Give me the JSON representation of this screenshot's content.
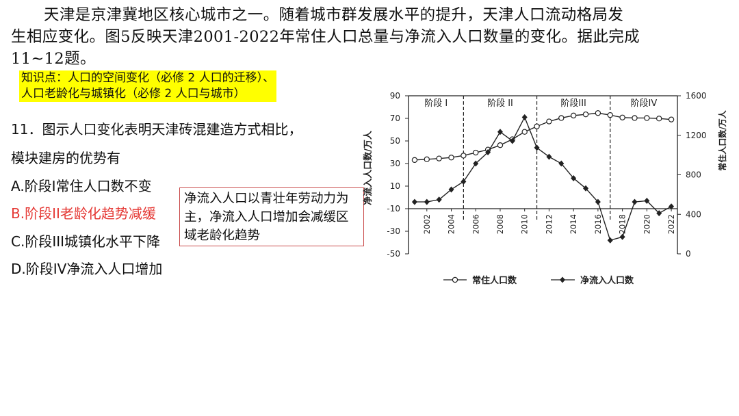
{
  "intro": {
    "line1": "天津是京津冀地区核心城市之一。随着城市群发展水平的提升，天津人口流动格局发",
    "line2": "生相应变化。图5反映天津2001-2022年常住人口总量与净流入人口数量的变化。据此完成",
    "line3": "11~12题。"
  },
  "knowledge": {
    "line1": "知识点：人口的空间变化（必修 2 人口的迁移）、",
    "line2": "人口老龄化与城镇化（必修 2 人口与城市）"
  },
  "question": {
    "stem1": "11．图示人口变化表明天津砖混建造方式相比，",
    "stem2": "模块建房的优势有",
    "options": [
      "A.阶段I常住人口数不变",
      "B.阶段II老龄化趋势减缓",
      "C.阶段III城镇化水平下降",
      "D.阶段IV净流入人口增加"
    ]
  },
  "note": "净流入人口以青壮年劳动力为主，净流入人口增加会减缓区域老龄化趋势",
  "colors": {
    "highlight": "#ffff00",
    "answer": "#e53935",
    "note_border": "#c94a4a"
  },
  "chart_data": {
    "type": "line",
    "stages": [
      "阶段 I",
      "阶段 II",
      "阶段III",
      "阶段IV"
    ],
    "stage_boundaries": [
      2005,
      2011,
      2017
    ],
    "x_ticks": [
      "2002",
      "2004",
      "2006",
      "2008",
      "2010",
      "2012",
      "2014",
      "2016",
      "2018",
      "2020",
      "2022"
    ],
    "xlim": [
      2000.5,
      2022.5
    ],
    "left_axis": {
      "label": "净流入人口数/万人",
      "ticks": [
        90,
        70,
        50,
        30,
        10,
        -10,
        -30,
        -50
      ],
      "ylim": [
        -50,
        90
      ]
    },
    "right_axis": {
      "label": "常住人口数/万人",
      "ticks": [
        1600,
        1200,
        800,
        400,
        0
      ],
      "ylim": [
        0,
        1600
      ]
    },
    "series": [
      {
        "name": "常住人口数",
        "axis": "right",
        "marker": "open-circle",
        "x": [
          2001,
          2002,
          2003,
          2004,
          2005,
          2006,
          2007,
          2008,
          2009,
          2010,
          2011,
          2012,
          2013,
          2014,
          2015,
          2016,
          2017,
          2018,
          2019,
          2020,
          2021,
          2022
        ],
        "values": [
          950,
          957,
          965,
          975,
          995,
          1025,
          1055,
          1100,
          1160,
          1235,
          1290,
          1340,
          1375,
          1400,
          1412,
          1425,
          1405,
          1380,
          1375,
          1375,
          1370,
          1360
        ]
      },
      {
        "name": "净流入人口数",
        "axis": "left",
        "marker": "filled-diamond",
        "x": [
          2001,
          2002,
          2003,
          2004,
          2005,
          2006,
          2007,
          2008,
          2009,
          2010,
          2011,
          2012,
          2013,
          2014,
          2015,
          2016,
          2017,
          2018,
          2019,
          2020,
          2021,
          2022
        ],
        "values": [
          -4,
          -4,
          -2,
          7,
          14,
          30,
          40,
          58,
          50,
          71,
          44,
          36,
          30,
          17,
          8,
          -4,
          -38,
          -35,
          -4,
          -3,
          -14,
          -8
        ]
      }
    ]
  }
}
